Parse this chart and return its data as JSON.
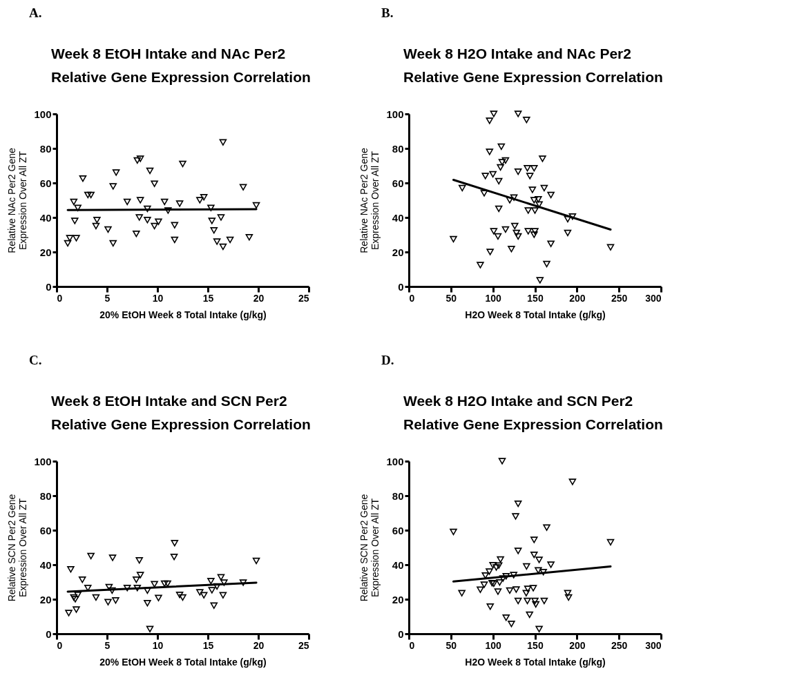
{
  "chart_data": [
    {
      "type": "scatter",
      "title": "Week 8 EtOH Intake and NAc Per2\nRelative Gene Expression Correlation",
      "xlabel": "20% EtOH Week 8  Total Intake (g/kg)",
      "ylabel": "Relative NAc Per2 Gene\nExpression Over All ZT",
      "annotations": [
        "A."
      ],
      "xlim": [
        0,
        25
      ],
      "xticks": [
        0,
        5,
        10,
        15,
        20,
        25
      ],
      "ylim": [
        0,
        100
      ],
      "yticks": [
        0,
        20,
        40,
        60,
        80,
        100
      ],
      "series": [
        {
          "marker": "triangle",
          "color": "#000000",
          "x": [
            1.1,
            1.3,
            1.95,
            1.7,
            2.1,
            1.8,
            2.6,
            3.1,
            3.4,
            3.9,
            4.0,
            5.1,
            5.6,
            5.6,
            5.9,
            7.0,
            7.9,
            8.0,
            8.3,
            8.2,
            8.3,
            9.0,
            9.0,
            9.25,
            9.7,
            9.7,
            10.1,
            10.7,
            11.05,
            11.7,
            11.7,
            12.2,
            12.5,
            14.2,
            14.6,
            15.3,
            15.4,
            15.6,
            15.9,
            16.3,
            16.5,
            16.5,
            17.2,
            18.5,
            19.1,
            19.8
          ],
          "values": [
            25,
            28,
            28,
            49,
            45.5,
            38,
            62.5,
            53,
            53,
            35,
            38.5,
            33,
            25,
            58,
            66,
            49,
            30.5,
            73,
            74,
            40,
            50,
            45,
            38.5,
            67,
            59.5,
            35,
            37.5,
            49,
            44,
            27,
            35.5,
            48,
            71,
            50,
            51.7,
            45.5,
            38,
            32.5,
            26,
            40,
            83.5,
            23,
            27,
            57.5,
            28.5,
            47
          ]
        },
        {
          "type": "line",
          "color": "#000000",
          "x": [
            1.1,
            19.8
          ],
          "values": [
            44.3,
            44.8
          ]
        }
      ]
    },
    {
      "type": "scatter",
      "title": "Week 8 H2O Intake and NAc Per2\nRelative Gene Expression Correlation",
      "xlabel": "H2O Week 8  Total Intake (g/kg)",
      "ylabel": "Relative NAc Per2 Gene\nExpression Over All ZT",
      "annotations": [
        "B."
      ],
      "xlim": [
        0,
        300
      ],
      "xticks": [
        0,
        50,
        100,
        150,
        200,
        250,
        300
      ],
      "ylim": [
        0,
        100
      ],
      "yticks": [
        0,
        20,
        40,
        60,
        80,
        100
      ],
      "series": [
        {
          "marker": "triangle",
          "color": "#000000",
          "x": [
            53,
            63.5,
            85,
            89.6,
            91,
            96,
            96,
            96.7,
            100,
            101,
            101,
            106,
            107,
            107,
            109,
            110,
            111,
            115,
            115,
            122,
            120,
            125,
            126,
            128,
            130,
            130,
            130,
            140,
            141,
            142,
            142,
            144,
            147,
            149,
            149,
            150,
            149,
            150,
            154,
            155,
            156,
            159,
            161,
            164,
            169,
            169,
            189,
            189,
            194.7,
            240
          ],
          "values": [
            27.4,
            57,
            12.4,
            54,
            64,
            78,
            96,
            20,
            65,
            100,
            32,
            29,
            61,
            45,
            69,
            81,
            72,
            73,
            33,
            21.7,
            50,
            51.5,
            35,
            31,
            29,
            66.5,
            100,
            96.5,
            68.5,
            44,
            32,
            64,
            56,
            68.5,
            30,
            32,
            50,
            44,
            50.5,
            47.5,
            3.6,
            74,
            57,
            13,
            24.7,
            53,
            39,
            31,
            40.5,
            22.7
          ]
        },
        {
          "type": "line",
          "color": "#000000",
          "x": [
            53,
            240
          ],
          "values": [
            61.8,
            33
          ]
        }
      ]
    },
    {
      "type": "scatter",
      "title": "Week 8 EtOH Intake and SCN Per2\nRelative Gene Expression Correlation",
      "xlabel": "20% EtOH Week 8  Total Intake (g/kg)",
      "ylabel": "Relative SCN Per2 Gene\nExpression Over All ZT",
      "annotations": [
        "C."
      ],
      "xlim": [
        0,
        25
      ],
      "xticks": [
        0,
        5,
        10,
        15,
        20,
        25
      ],
      "ylim": [
        0,
        100
      ],
      "yticks": [
        0,
        20,
        40,
        60,
        80,
        100
      ],
      "series": [
        {
          "marker": "triangle",
          "color": "#000000",
          "x": [
            1.2,
            1.4,
            1.7,
            1.85,
            1.95,
            2.1,
            2.55,
            3.1,
            3.4,
            3.9,
            5.1,
            5.2,
            5.5,
            5.55,
            5.85,
            7.0,
            7.9,
            8.0,
            8.2,
            8.3,
            9.0,
            9.0,
            9.25,
            9.7,
            10.1,
            10.7,
            11.0,
            11.65,
            11.7,
            12.2,
            12.5,
            14.2,
            14.6,
            15.3,
            15.4,
            15.6,
            15.9,
            16.3,
            16.6,
            16.5,
            18.5,
            19.8
          ],
          "values": [
            12,
            37.3,
            21,
            20,
            14,
            22.5,
            31.3,
            26.5,
            45,
            21,
            18.3,
            27,
            25,
            44,
            19.3,
            26.5,
            31.3,
            26.5,
            42.5,
            34,
            25,
            17.7,
            2.7,
            28.7,
            20.7,
            29,
            29,
            44.5,
            52.5,
            22.5,
            21,
            24,
            22.3,
            30.5,
            25.2,
            16.3,
            27.4,
            32.7,
            29.6,
            22.3,
            29.6,
            42.2
          ]
        },
        {
          "type": "line",
          "color": "#000000",
          "x": [
            1.1,
            19.8
          ],
          "values": [
            24.4,
            29.6
          ]
        }
      ]
    },
    {
      "type": "scatter",
      "title": "Week 8 H2O Intake and SCN Per2\nRelative Gene Expression Correlation",
      "xlabel": "H2O Week 8  Total Intake (g/kg)",
      "ylabel": "Relative SCN Per2 Gene\nExpression Over All ZT",
      "annotations": [
        "D."
      ],
      "xlim": [
        0,
        300
      ],
      "xticks": [
        0,
        50,
        100,
        150,
        200,
        250,
        300
      ],
      "ylim": [
        0,
        100
      ],
      "yticks": [
        0,
        20,
        40,
        60,
        80,
        100
      ],
      "series": [
        {
          "marker": "triangle",
          "color": "#000000",
          "x": [
            53,
            63,
            85,
            89.6,
            91,
            95.7,
            96.8,
            99,
            100,
            101,
            104,
            106,
            107,
            109,
            108,
            111,
            112,
            115.7,
            115.7,
            122,
            120,
            124.7,
            127,
            127.7,
            130,
            130,
            130,
            140,
            141,
            141.5,
            139.6,
            143.6,
            148,
            149,
            149,
            150,
            151,
            155,
            155,
            154,
            160,
            161,
            164,
            169,
            189,
            190,
            194.7,
            240
          ],
          "values": [
            59,
            23.5,
            25.5,
            28.4,
            33.7,
            36,
            15.7,
            29.3,
            39.7,
            29,
            38.4,
            24.4,
            39.5,
            43,
            29.7,
            100,
            32,
            33.3,
            9.3,
            5.7,
            25,
            34,
            68,
            25.6,
            75.3,
            48,
            19,
            39,
            19,
            26,
            23.5,
            11,
            26.4,
            54.4,
            45.7,
            19,
            17,
            42.8,
            2.7,
            36.7,
            35.7,
            19,
            61.5,
            40,
            23.5,
            21,
            88,
            53
          ]
        },
        {
          "type": "line",
          "color": "#000000",
          "x": [
            53,
            240
          ],
          "values": [
            30.3,
            39
          ]
        }
      ]
    }
  ]
}
